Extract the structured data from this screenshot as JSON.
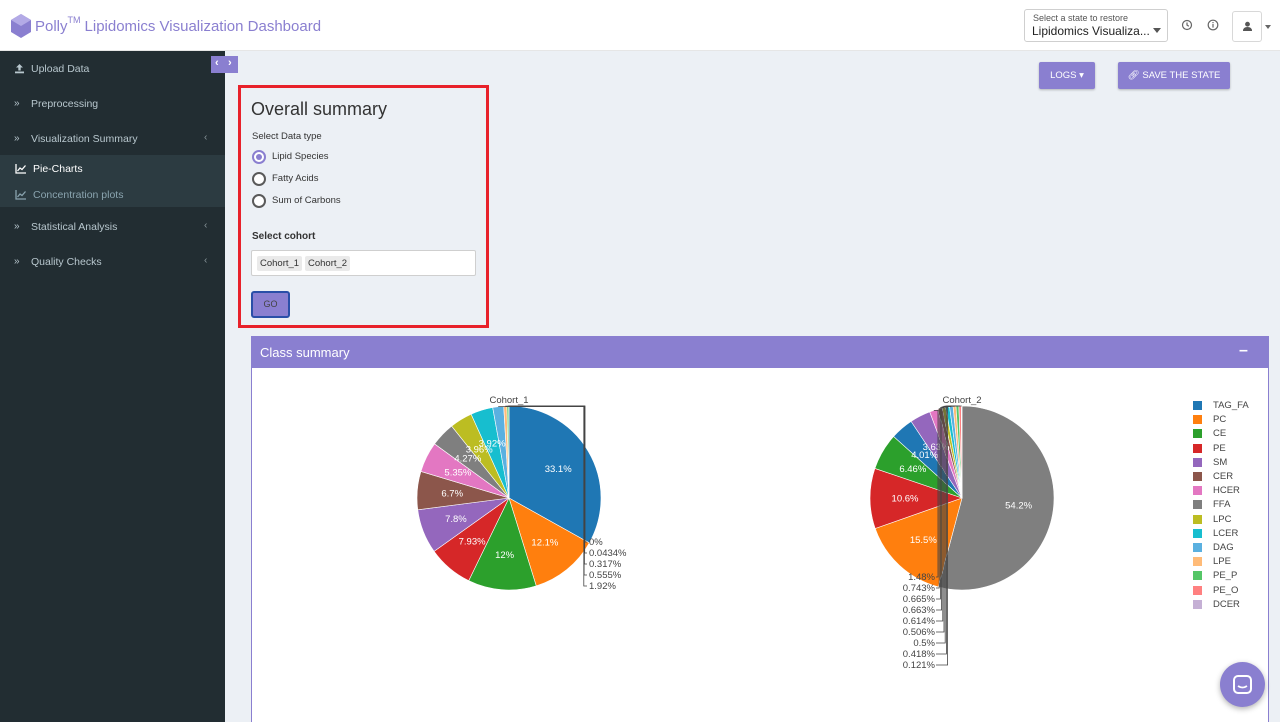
{
  "header": {
    "brand": "Polly",
    "brand_sup": "TM",
    "title": "Lipidomics Visualization Dashboard",
    "state_select": {
      "label": "Select a state to restore",
      "value": "Lipidomics Visualiza..."
    },
    "icons": [
      "history-icon",
      "info-icon",
      "user-icon"
    ]
  },
  "sidebar": {
    "items": [
      {
        "label": "Upload Data",
        "icon": "upload-icon"
      },
      {
        "label": "Preprocessing",
        "icon": "chevron-double-right-icon"
      },
      {
        "label": "Visualization Summary",
        "icon": "chevron-double-right-icon"
      },
      {
        "label": "Statistical Analysis",
        "icon": "chevron-double-right-icon"
      },
      {
        "label": "Quality Checks",
        "icon": "chevron-double-right-icon"
      }
    ],
    "subitems": [
      {
        "label": "Pie-Charts",
        "icon": "line-chart-icon",
        "active": true
      },
      {
        "label": "Concentration plots",
        "icon": "line-chart-icon",
        "active": false
      }
    ]
  },
  "toolbar": {
    "logs_label": "LOGS",
    "save_label": "SAVE THE STATE"
  },
  "summary": {
    "title": "Overall summary",
    "data_type_label": "Select Data type",
    "options": [
      {
        "label": "Lipid Species",
        "selected": true
      },
      {
        "label": "Fatty Acids",
        "selected": false
      },
      {
        "label": "Sum of Carbons",
        "selected": false
      }
    ],
    "cohort_label": "Select cohort",
    "cohorts": [
      "Cohort_1",
      "Cohort_2"
    ],
    "go_label": "GO"
  },
  "class_summary": {
    "title": "Class summary",
    "collapse_label": "–"
  },
  "colors": {
    "accent": "#8a7fd0",
    "sidebar": "#222d32",
    "highlight_border": "#e8212a"
  },
  "chart_data": [
    {
      "type": "pie",
      "title": "Cohort_1",
      "labels": [
        "TAG_FA",
        "PC",
        "CE",
        "PE",
        "SM",
        "CER",
        "HCER",
        "FFA",
        "LPC",
        "LCER",
        "DAG",
        "LPE",
        "PE_P",
        "PE_O",
        "DCER"
      ],
      "values": [
        33.1,
        12.1,
        12,
        7.93,
        7.8,
        6.7,
        5.35,
        4.27,
        3.96,
        3.92,
        1.92,
        0.555,
        0.317,
        0.0434,
        0
      ],
      "value_labels": [
        "33.1%",
        "12.1%",
        "12%",
        "7.93%",
        "7.8%",
        "6.7%",
        "5.35%",
        "4.27%",
        "3.96%",
        "3.92%",
        "1.92%",
        "0.555%",
        "0.317%",
        "0.0434%",
        "0%"
      ]
    },
    {
      "type": "pie",
      "title": "Cohort_2",
      "labels": [
        "FFA",
        "PC",
        "PE",
        "CE",
        "TAG_FA",
        "SM",
        "HCER",
        "CER",
        "LPC",
        "LCER",
        "DAG",
        "LPE",
        "PE_P",
        "PE_O",
        "DCER"
      ],
      "values": [
        54.2,
        15.5,
        10.6,
        6.46,
        4.01,
        3.63,
        1.48,
        0.743,
        0.665,
        0.663,
        0.614,
        0.506,
        0.5,
        0.418,
        0.121
      ],
      "value_labels": [
        "54.2%",
        "15.5%",
        "10.6%",
        "6.46%",
        "4.01%",
        "3.63%",
        "1.48%",
        "0.743%",
        "0.665%",
        "0.663%",
        "0.614%",
        "0.506%",
        "0.5%",
        "0.418%",
        "0.121%"
      ]
    }
  ],
  "legend": {
    "entries": [
      {
        "label": "TAG_FA",
        "color": "#1f77b4"
      },
      {
        "label": "PC",
        "color": "#ff7f0e"
      },
      {
        "label": "CE",
        "color": "#2ca02c"
      },
      {
        "label": "PE",
        "color": "#d62728"
      },
      {
        "label": "SM",
        "color": "#9467bd"
      },
      {
        "label": "CER",
        "color": "#8c564b"
      },
      {
        "label": "HCER",
        "color": "#e377c2"
      },
      {
        "label": "FFA",
        "color": "#7f7f7f"
      },
      {
        "label": "LPC",
        "color": "#bcbd22"
      },
      {
        "label": "LCER",
        "color": "#17becf"
      },
      {
        "label": "DAG",
        "color": "#5ab0e0"
      },
      {
        "label": "LPE",
        "color": "#ffbb78"
      },
      {
        "label": "PE_P",
        "color": "#55c667"
      },
      {
        "label": "PE_O",
        "color": "#ff8080"
      },
      {
        "label": "DCER",
        "color": "#c5b0d5"
      }
    ]
  }
}
